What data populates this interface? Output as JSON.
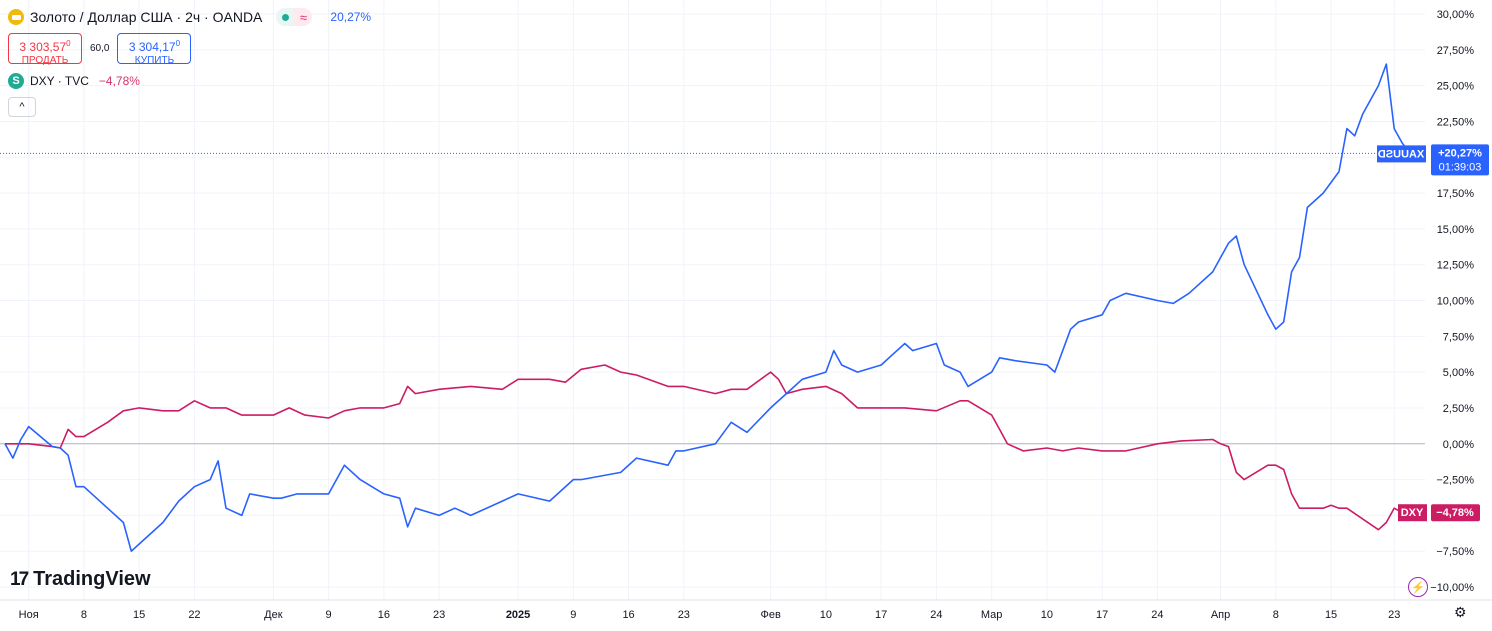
{
  "header": {
    "gold_title": "Золото / Доллар США · 2ч · OANDA",
    "gold_change": "20,27%",
    "sell_price": "3 303,57",
    "sell_price_sup": "0",
    "sell_label": "ПРОДАТЬ",
    "spread": "60,0",
    "buy_price": "3 304,17",
    "buy_price_sup": "0",
    "buy_label": "КУПИТЬ",
    "dxy_title": "DXY · TVC",
    "dxy_change": "−4,78%",
    "dxy_icon_letter": "S",
    "collapse_glyph": "^",
    "wave_glyph": "≈"
  },
  "logo": {
    "mark": "17",
    "text": "TradingView"
  },
  "icons": {
    "bolt": "bolt-icon",
    "gear": "gear-icon",
    "gold": "gold-icon",
    "dxy": "dxy-icon"
  },
  "colors": {
    "gold_series": "#2962ff",
    "dxy_series": "#cc1c64",
    "zero_line": "#b2b5be",
    "grid": "#f0f3fa"
  },
  "chart_data": {
    "type": "line",
    "x_range": [
      "2024-10-29",
      "2025-04-25"
    ],
    "ylim": [
      -10,
      30
    ],
    "y_unit": "%",
    "y_ticks": [
      "30,00%",
      "27,50%",
      "25,00%",
      "22,50%",
      "20,00%",
      "17,50%",
      "15,00%",
      "12,50%",
      "10,00%",
      "7,50%",
      "5,00%",
      "2,50%",
      "0,00%",
      "−2,50%",
      "−5,00%",
      "−7,50%",
      "−10,00%"
    ],
    "y_tick_values": [
      30,
      27.5,
      25,
      22.5,
      20,
      17.5,
      15,
      12.5,
      10,
      7.5,
      5,
      2.5,
      0,
      -2.5,
      -5,
      -7.5,
      -10
    ],
    "x_ticks": [
      {
        "label": "Ноя",
        "date": "2024-11-01"
      },
      {
        "label": "8",
        "date": "2024-11-08"
      },
      {
        "label": "15",
        "date": "2024-11-15"
      },
      {
        "label": "22",
        "date": "2024-11-22"
      },
      {
        "label": "Дек",
        "date": "2024-12-02"
      },
      {
        "label": "9",
        "date": "2024-12-09"
      },
      {
        "label": "16",
        "date": "2024-12-16"
      },
      {
        "label": "23",
        "date": "2024-12-23"
      },
      {
        "label": "2025",
        "date": "2025-01-02",
        "bold": true
      },
      {
        "label": "9",
        "date": "2025-01-09"
      },
      {
        "label": "16",
        "date": "2025-01-16"
      },
      {
        "label": "23",
        "date": "2025-01-23"
      },
      {
        "label": "Фев",
        "date": "2025-02-03"
      },
      {
        "label": "10",
        "date": "2025-02-10"
      },
      {
        "label": "17",
        "date": "2025-02-17"
      },
      {
        "label": "24",
        "date": "2025-02-24"
      },
      {
        "label": "Мар",
        "date": "2025-03-03"
      },
      {
        "label": "10",
        "date": "2025-03-10"
      },
      {
        "label": "17",
        "date": "2025-03-17"
      },
      {
        "label": "24",
        "date": "2025-03-24"
      },
      {
        "label": "Апр",
        "date": "2025-04-01"
      },
      {
        "label": "8",
        "date": "2025-04-08"
      },
      {
        "label": "15",
        "date": "2025-04-15"
      },
      {
        "label": "23",
        "date": "2025-04-23"
      }
    ],
    "series": [
      {
        "name": "XAUUSD",
        "color": "#2962ff",
        "last_label": "+20,27%",
        "countdown": "01:39:03",
        "points": [
          [
            "2024-10-29",
            0.0
          ],
          [
            "2024-10-30",
            -1.0
          ],
          [
            "2024-10-31",
            0.3
          ],
          [
            "2024-11-01",
            1.2
          ],
          [
            "2024-11-04",
            -0.2
          ],
          [
            "2024-11-05",
            -0.3
          ],
          [
            "2024-11-06",
            -0.8
          ],
          [
            "2024-11-07",
            -3.0
          ],
          [
            "2024-11-08",
            -3.0
          ],
          [
            "2024-11-11",
            -4.5
          ],
          [
            "2024-11-13",
            -5.5
          ],
          [
            "2024-11-14",
            -7.5
          ],
          [
            "2024-11-15",
            -7.0
          ],
          [
            "2024-11-18",
            -5.5
          ],
          [
            "2024-11-20",
            -4.0
          ],
          [
            "2024-11-22",
            -3.0
          ],
          [
            "2024-11-24",
            -2.5
          ],
          [
            "2024-11-25",
            -1.2
          ],
          [
            "2024-11-26",
            -4.5
          ],
          [
            "2024-11-28",
            -5.0
          ],
          [
            "2024-11-29",
            -3.5
          ],
          [
            "2024-12-02",
            -3.8
          ],
          [
            "2024-12-03",
            -3.8
          ],
          [
            "2024-12-05",
            -3.5
          ],
          [
            "2024-12-09",
            -3.5
          ],
          [
            "2024-12-11",
            -1.5
          ],
          [
            "2024-12-13",
            -2.5
          ],
          [
            "2024-12-16",
            -3.5
          ],
          [
            "2024-12-18",
            -3.8
          ],
          [
            "2024-12-19",
            -5.8
          ],
          [
            "2024-12-20",
            -4.5
          ],
          [
            "2024-12-23",
            -5.0
          ],
          [
            "2024-12-25",
            -4.5
          ],
          [
            "2024-12-27",
            -5.0
          ],
          [
            "2024-12-31",
            -4.0
          ],
          [
            "2025-01-02",
            -3.5
          ],
          [
            "2025-01-06",
            -4.0
          ],
          [
            "2025-01-09",
            -2.5
          ],
          [
            "2025-01-10",
            -2.5
          ],
          [
            "2025-01-15",
            -2.0
          ],
          [
            "2025-01-17",
            -1.0
          ],
          [
            "2025-01-21",
            -1.5
          ],
          [
            "2025-01-22",
            -0.5
          ],
          [
            "2025-01-23",
            -0.5
          ],
          [
            "2025-01-27",
            0.0
          ],
          [
            "2025-01-29",
            1.5
          ],
          [
            "2025-01-31",
            0.8
          ],
          [
            "2025-02-03",
            2.5
          ],
          [
            "2025-02-05",
            3.5
          ],
          [
            "2025-02-07",
            4.5
          ],
          [
            "2025-02-10",
            5.0
          ],
          [
            "2025-02-11",
            6.5
          ],
          [
            "2025-02-12",
            5.5
          ],
          [
            "2025-02-14",
            5.0
          ],
          [
            "2025-02-17",
            5.5
          ],
          [
            "2025-02-18",
            6.0
          ],
          [
            "2025-02-20",
            7.0
          ],
          [
            "2025-02-21",
            6.5
          ],
          [
            "2025-02-24",
            7.0
          ],
          [
            "2025-02-25",
            5.5
          ],
          [
            "2025-02-27",
            5.0
          ],
          [
            "2025-02-28",
            4.0
          ],
          [
            "2025-03-03",
            5.0
          ],
          [
            "2025-03-04",
            6.0
          ],
          [
            "2025-03-06",
            5.8
          ],
          [
            "2025-03-10",
            5.5
          ],
          [
            "2025-03-11",
            5.0
          ],
          [
            "2025-03-13",
            8.0
          ],
          [
            "2025-03-14",
            8.5
          ],
          [
            "2025-03-17",
            9.0
          ],
          [
            "2025-03-18",
            10.0
          ],
          [
            "2025-03-20",
            10.5
          ],
          [
            "2025-03-24",
            10.0
          ],
          [
            "2025-03-26",
            9.8
          ],
          [
            "2025-03-28",
            10.5
          ],
          [
            "2025-03-31",
            12.0
          ],
          [
            "2025-04-01",
            13.0
          ],
          [
            "2025-04-02",
            14.0
          ],
          [
            "2025-04-03",
            14.5
          ],
          [
            "2025-04-04",
            12.5
          ],
          [
            "2025-04-07",
            9.0
          ],
          [
            "2025-04-08",
            8.0
          ],
          [
            "2025-04-09",
            8.5
          ],
          [
            "2025-04-10",
            12.0
          ],
          [
            "2025-04-11",
            13.0
          ],
          [
            "2025-04-12",
            16.5
          ],
          [
            "2025-04-14",
            17.5
          ],
          [
            "2025-04-16",
            19.0
          ],
          [
            "2025-04-17",
            22.0
          ],
          [
            "2025-04-18",
            21.5
          ],
          [
            "2025-04-19",
            23.0
          ],
          [
            "2025-04-21",
            25.0
          ],
          [
            "2025-04-22",
            26.5
          ],
          [
            "2025-04-23",
            22.0
          ],
          [
            "2025-04-24",
            21.0
          ],
          [
            "2025-04-25",
            20.27
          ]
        ]
      },
      {
        "name": "DXY",
        "color": "#cc1c64",
        "last_label": "−4,78%",
        "points": [
          [
            "2024-10-29",
            0.0
          ],
          [
            "2024-10-31",
            0.0
          ],
          [
            "2024-11-01",
            0.0
          ],
          [
            "2024-11-04",
            -0.2
          ],
          [
            "2024-11-05",
            -0.3
          ],
          [
            "2024-11-06",
            1.0
          ],
          [
            "2024-11-07",
            0.5
          ],
          [
            "2024-11-08",
            0.5
          ],
          [
            "2024-11-11",
            1.5
          ],
          [
            "2024-11-13",
            2.3
          ],
          [
            "2024-11-15",
            2.5
          ],
          [
            "2024-11-18",
            2.3
          ],
          [
            "2024-11-20",
            2.3
          ],
          [
            "2024-11-22",
            3.0
          ],
          [
            "2024-11-24",
            2.5
          ],
          [
            "2024-11-26",
            2.5
          ],
          [
            "2024-11-28",
            2.0
          ],
          [
            "2024-11-29",
            2.0
          ],
          [
            "2024-12-02",
            2.0
          ],
          [
            "2024-12-04",
            2.5
          ],
          [
            "2024-12-06",
            2.0
          ],
          [
            "2024-12-09",
            1.8
          ],
          [
            "2024-12-11",
            2.3
          ],
          [
            "2024-12-13",
            2.5
          ],
          [
            "2024-12-16",
            2.5
          ],
          [
            "2024-12-18",
            2.8
          ],
          [
            "2024-12-19",
            4.0
          ],
          [
            "2024-12-20",
            3.5
          ],
          [
            "2024-12-23",
            3.8
          ],
          [
            "2024-12-27",
            4.0
          ],
          [
            "2024-12-31",
            3.8
          ],
          [
            "2025-01-02",
            4.5
          ],
          [
            "2025-01-06",
            4.5
          ],
          [
            "2025-01-08",
            4.3
          ],
          [
            "2025-01-10",
            5.2
          ],
          [
            "2025-01-13",
            5.5
          ],
          [
            "2025-01-15",
            5.0
          ],
          [
            "2025-01-17",
            4.8
          ],
          [
            "2025-01-21",
            4.0
          ],
          [
            "2025-01-23",
            4.0
          ],
          [
            "2025-01-27",
            3.5
          ],
          [
            "2025-01-29",
            3.8
          ],
          [
            "2025-01-31",
            3.8
          ],
          [
            "2025-02-03",
            5.0
          ],
          [
            "2025-02-04",
            4.5
          ],
          [
            "2025-02-05",
            3.5
          ],
          [
            "2025-02-07",
            3.8
          ],
          [
            "2025-02-10",
            4.0
          ],
          [
            "2025-02-12",
            3.5
          ],
          [
            "2025-02-14",
            2.5
          ],
          [
            "2025-02-18",
            2.5
          ],
          [
            "2025-02-20",
            2.5
          ],
          [
            "2025-02-24",
            2.3
          ],
          [
            "2025-02-27",
            3.0
          ],
          [
            "2025-02-28",
            3.0
          ],
          [
            "2025-03-03",
            2.0
          ],
          [
            "2025-03-04",
            1.0
          ],
          [
            "2025-03-05",
            0.0
          ],
          [
            "2025-03-07",
            -0.5
          ],
          [
            "2025-03-10",
            -0.3
          ],
          [
            "2025-03-12",
            -0.5
          ],
          [
            "2025-03-14",
            -0.3
          ],
          [
            "2025-03-17",
            -0.5
          ],
          [
            "2025-03-20",
            -0.5
          ],
          [
            "2025-03-24",
            0.0
          ],
          [
            "2025-03-27",
            0.2
          ],
          [
            "2025-03-31",
            0.3
          ],
          [
            "2025-04-01",
            0.0
          ],
          [
            "2025-04-02",
            -0.2
          ],
          [
            "2025-04-03",
            -2.0
          ],
          [
            "2025-04-04",
            -2.5
          ],
          [
            "2025-04-07",
            -1.5
          ],
          [
            "2025-04-08",
            -1.5
          ],
          [
            "2025-04-09",
            -1.8
          ],
          [
            "2025-04-10",
            -3.5
          ],
          [
            "2025-04-11",
            -4.5
          ],
          [
            "2025-04-14",
            -4.5
          ],
          [
            "2025-04-15",
            -4.3
          ],
          [
            "2025-04-16",
            -4.5
          ],
          [
            "2025-04-17",
            -4.5
          ],
          [
            "2025-04-21",
            -6.0
          ],
          [
            "2025-04-22",
            -5.5
          ],
          [
            "2025-04-23",
            -4.5
          ],
          [
            "2025-04-24",
            -4.8
          ],
          [
            "2025-04-25",
            -4.78
          ]
        ]
      }
    ],
    "zero_line": 0,
    "grid": true
  }
}
